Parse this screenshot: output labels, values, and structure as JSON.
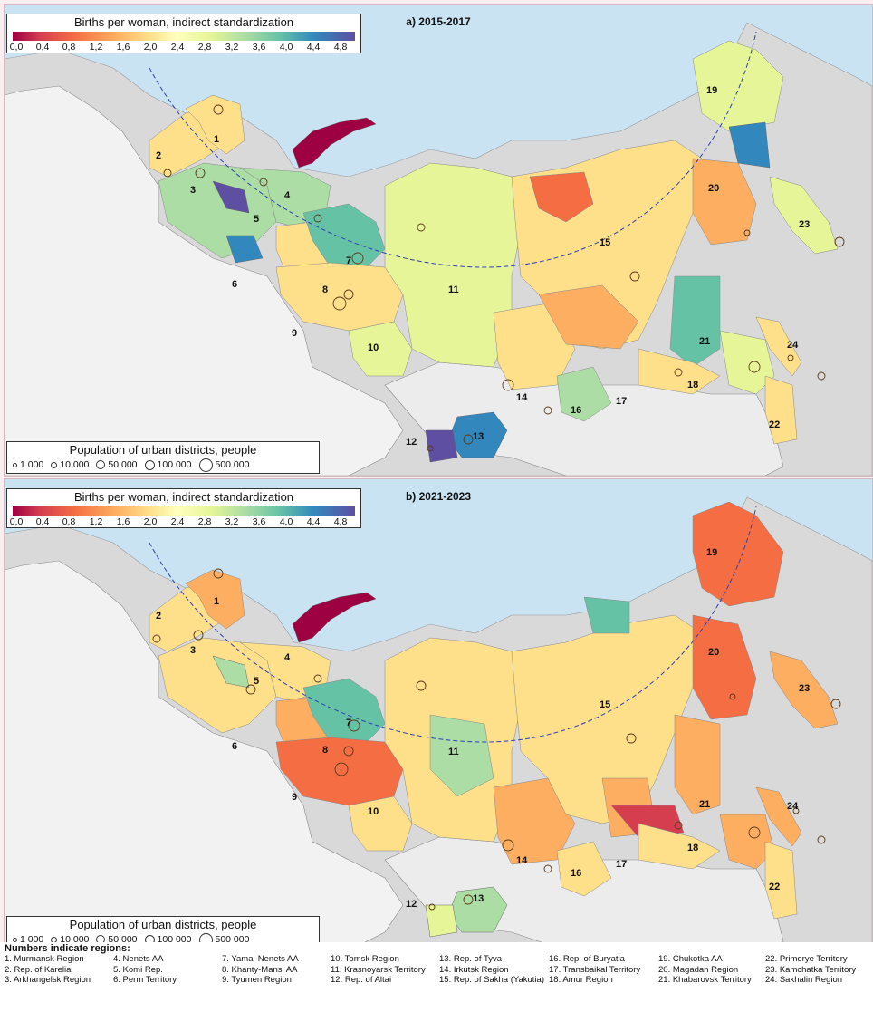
{
  "scale": {
    "title": "Births per woman, indirect standardization",
    "ticks": [
      "0,0",
      "0,4",
      "0,8",
      "1,2",
      "1,6",
      "2,0",
      "2,4",
      "2,8",
      "3,2",
      "3,6",
      "4,0",
      "4,4",
      "4,8"
    ],
    "colors": [
      "#9e0142",
      "#d53e4f",
      "#f46d43",
      "#fdae61",
      "#fee08b",
      "#ffffbf",
      "#e6f598",
      "#abdda4",
      "#66c2a5",
      "#3288bd",
      "#5e4fa2"
    ]
  },
  "population_legend": {
    "title": "Population of urban districts, people",
    "items": [
      "1 000",
      "10 000",
      "50 000",
      "100 000",
      "500 000"
    ]
  },
  "panels": [
    {
      "id": "a",
      "title": "a) 2015-2017"
    },
    {
      "id": "b",
      "title": "b) 2021-2023"
    }
  ],
  "region_numbers": [
    "1",
    "2",
    "3",
    "4",
    "5",
    "6",
    "7",
    "8",
    "9",
    "10",
    "11",
    "12",
    "13",
    "14",
    "15",
    "16",
    "17",
    "18",
    "19",
    "20",
    "21",
    "22",
    "23",
    "24"
  ],
  "regions_legend": {
    "title": "Numbers indicate regions:",
    "columns": [
      [
        "1.  Murmansk Region",
        "2.  Rep. of Karelia",
        "3.  Arkhangelsk Region"
      ],
      [
        "4.  Nenets AA",
        "5.  Komi Rep.",
        "6.  Perm Territory"
      ],
      [
        "7.  Yamal-Nenets AA",
        "8.  Khanty-Mansi AA",
        "9.  Tyumen Region"
      ],
      [
        "10. Tomsk Region",
        "11. Krasnoyarsk Territory",
        "12. Rep. of Altai"
      ],
      [
        "13. Rep. of Tyva",
        "14. Irkutsk Region",
        "15. Rep. of Sakha (Yakutia)"
      ],
      [
        "16. Rep. of Buryatia",
        "17. Transbaikal Territory",
        "18. Amur Region"
      ],
      [
        "19. Chukotka AA",
        "20. Magadan Region",
        "21. Khabarovsk Territory"
      ],
      [
        "22. Primorye Territory",
        "23. Kamchatka Territory",
        "24. Sakhalin Region"
      ]
    ]
  }
}
